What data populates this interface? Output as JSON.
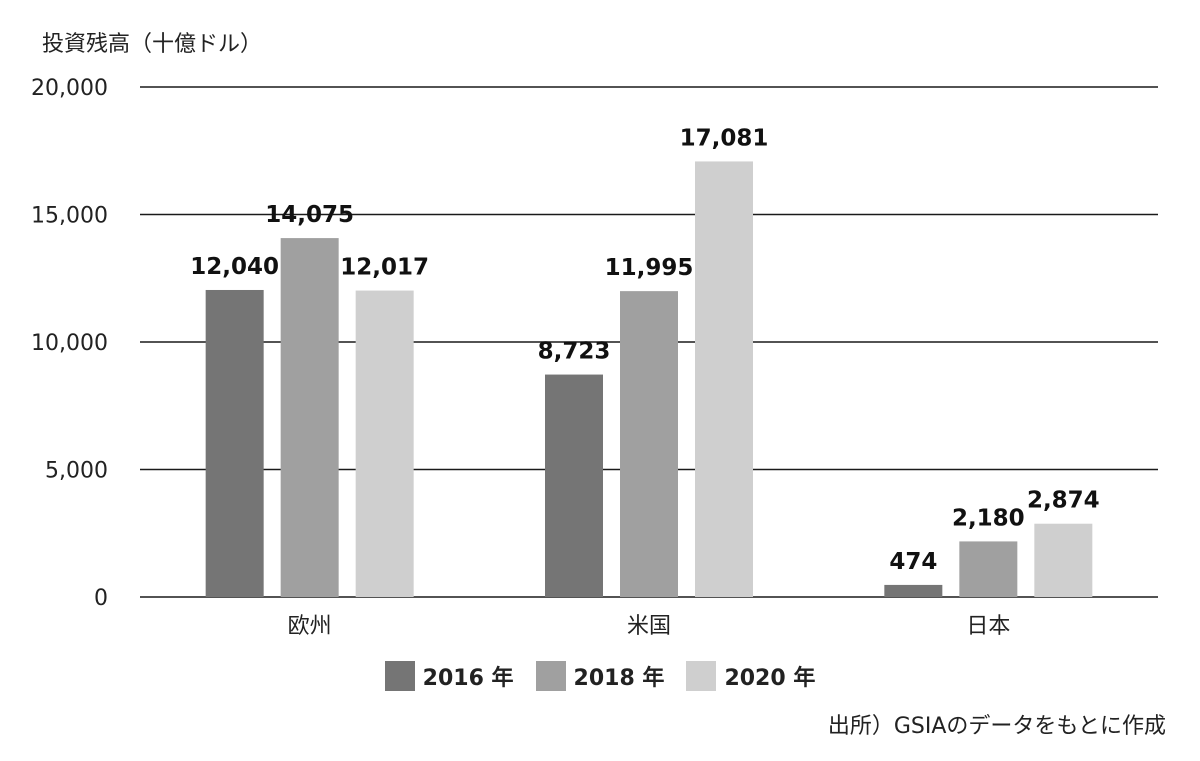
{
  "chart_data": {
    "type": "bar",
    "ylabel": "投資残高（十億ドル）",
    "categories": [
      "欧州",
      "米国",
      "日本"
    ],
    "series": [
      {
        "name": "2016 年",
        "color": "#757575",
        "values": [
          12040,
          8723,
          474
        ]
      },
      {
        "name": "2018 年",
        "color": "#a0a0a0",
        "values": [
          14075,
          11995,
          2180
        ]
      },
      {
        "name": "2020 年",
        "color": "#cfcfcf",
        "values": [
          12017,
          17081,
          2874
        ]
      }
    ],
    "data_labels": [
      [
        "12,040",
        "8,723",
        "474"
      ],
      [
        "14,075",
        "11,995",
        "2,180"
      ],
      [
        "12,017",
        "17,081",
        "2,874"
      ]
    ],
    "yticks": [
      {
        "value": 0,
        "label": "0"
      },
      {
        "value": 5000,
        "label": "5,000"
      },
      {
        "value": 10000,
        "label": "10,000"
      },
      {
        "value": 15000,
        "label": "15,000"
      },
      {
        "value": 20000,
        "label": "20,000"
      }
    ],
    "ylim": [
      0,
      20000
    ],
    "grid": true,
    "legend": "bottom",
    "source": "出所）GSIAのデータをもとに作成"
  }
}
